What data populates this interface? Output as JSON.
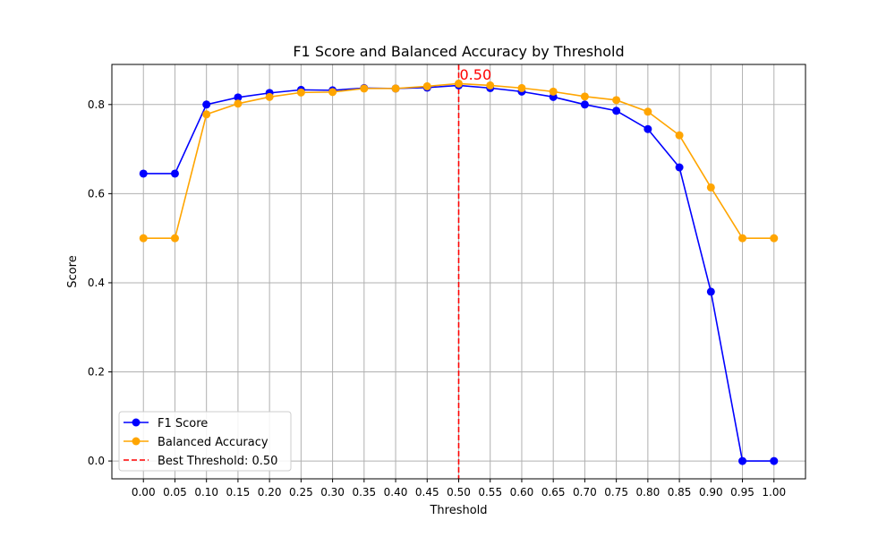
{
  "chart_data": {
    "type": "line",
    "title": "F1 Score and Balanced Accuracy by Threshold",
    "xlabel": "Threshold",
    "ylabel": "Score",
    "x": [
      0.0,
      0.05,
      0.1,
      0.15,
      0.2,
      0.25,
      0.3,
      0.35,
      0.4,
      0.45,
      0.5,
      0.55,
      0.6,
      0.65,
      0.7,
      0.75,
      0.8,
      0.85,
      0.9,
      0.95,
      1.0
    ],
    "xtick_labels": [
      "0.00",
      "0.05",
      "0.10",
      "0.15",
      "0.20",
      "0.25",
      "0.30",
      "0.35",
      "0.40",
      "0.45",
      "0.50",
      "0.55",
      "0.60",
      "0.65",
      "0.70",
      "0.75",
      "0.80",
      "0.85",
      "0.90",
      "0.95",
      "1.00"
    ],
    "xlim": [
      -0.05,
      1.05
    ],
    "ylim": [
      -0.04,
      0.89
    ],
    "yticks": [
      0.0,
      0.2,
      0.4,
      0.6,
      0.8
    ],
    "ytick_labels": [
      "0.0",
      "0.2",
      "0.4",
      "0.6",
      "0.8"
    ],
    "grid": true,
    "legend_position": "lower-left",
    "series": [
      {
        "name": "F1 Score",
        "color": "#0000ff",
        "marker": "circle",
        "values": [
          0.645,
          0.645,
          0.8,
          0.816,
          0.826,
          0.833,
          0.832,
          0.837,
          0.836,
          0.838,
          0.843,
          0.837,
          0.829,
          0.817,
          0.8,
          0.786,
          0.745,
          0.659,
          0.38,
          0.0,
          0.0
        ]
      },
      {
        "name": "Balanced Accuracy",
        "color": "#ffa500",
        "marker": "circle",
        "values": [
          0.5,
          0.5,
          0.778,
          0.802,
          0.817,
          0.827,
          0.828,
          0.836,
          0.836,
          0.841,
          0.847,
          0.843,
          0.837,
          0.829,
          0.818,
          0.81,
          0.784,
          0.731,
          0.614,
          0.5,
          0.5
        ]
      }
    ],
    "threshold_line": {
      "x": 0.5,
      "color": "#ff0000",
      "style": "dashed",
      "legend_label": "Best Threshold: 0.50",
      "annotation": "0.50"
    }
  }
}
